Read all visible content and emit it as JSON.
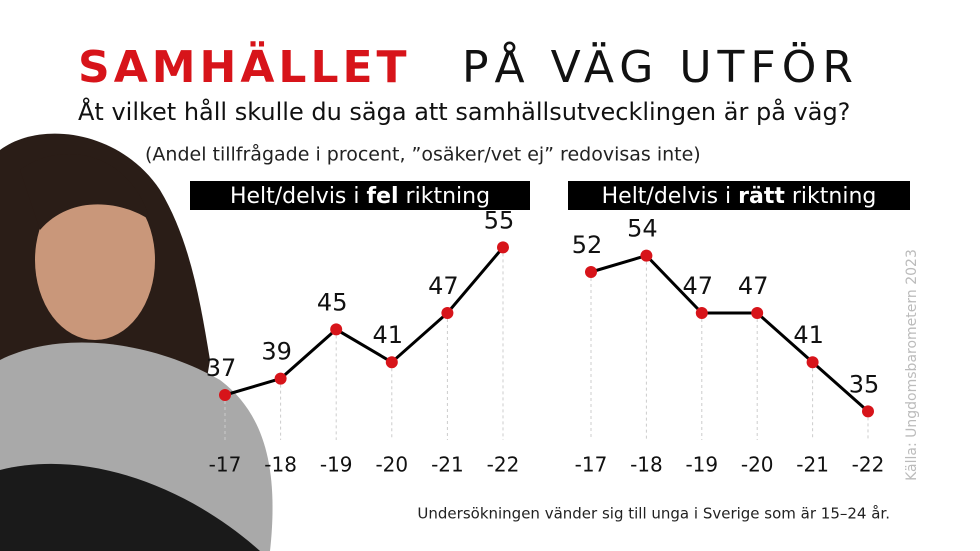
{
  "header": {
    "title_emphasis": "SAMHÄLLET",
    "title_rest": "PÅ VÄG UTFÖR",
    "question": "Åt vilket håll skulle du säga att samhällsutvecklingen är på väg?",
    "subtitle": "(Andel tillfrågade i procent, ”osäker/vet ej” redovisas inte)",
    "source": "Källa: Ungdomsbarometern 2023",
    "note": "Undersökningen vänder sig till unga i Sverige som är 15–24 år."
  },
  "chart_data": [
    {
      "type": "line",
      "title_prefix": "Helt/delvis i",
      "title_emphasis": "fel",
      "title_suffix": "riktning",
      "categories": [
        "-17",
        "-18",
        "-19",
        "-20",
        "-21",
        "-22"
      ],
      "values": [
        37,
        39,
        45,
        41,
        47,
        55
      ],
      "color": "#000000",
      "marker_color": "#d7141a",
      "ylim": [
        30,
        60
      ]
    },
    {
      "type": "line",
      "title_prefix": "Helt/delvis i",
      "title_emphasis": "rätt",
      "title_suffix": "riktning",
      "categories": [
        "-17",
        "-18",
        "-19",
        "-20",
        "-21",
        "-22"
      ],
      "values": [
        52,
        54,
        47,
        47,
        41,
        35
      ],
      "color": "#000000",
      "marker_color": "#d7141a",
      "ylim": [
        30,
        60
      ]
    }
  ]
}
